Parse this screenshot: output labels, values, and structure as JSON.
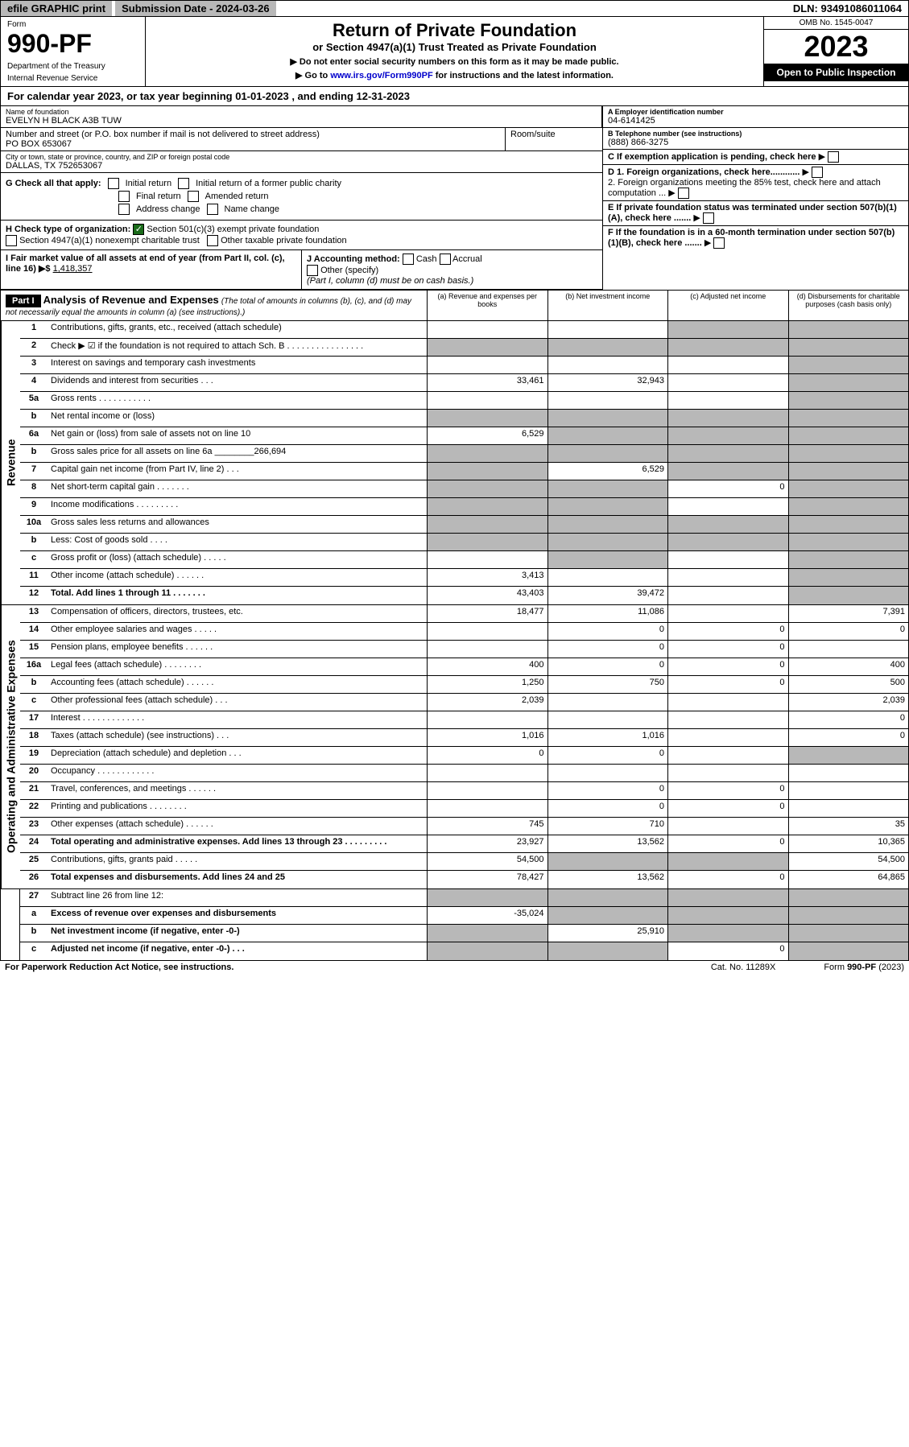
{
  "top": {
    "efile": "efile GRAPHIC print",
    "submission": "Submission Date - 2024-03-26",
    "dln": "DLN: 93491086011064"
  },
  "header": {
    "form_label": "Form",
    "form_num": "990-PF",
    "dept1": "Department of the Treasury",
    "dept2": "Internal Revenue Service",
    "title": "Return of Private Foundation",
    "subtitle": "or Section 4947(a)(1) Trust Treated as Private Foundation",
    "instr1": "▶ Do not enter social security numbers on this form as it may be made public.",
    "instr2_pre": "▶ Go to ",
    "instr2_link": "www.irs.gov/Form990PF",
    "instr2_post": " for instructions and the latest information.",
    "omb": "OMB No. 1545-0047",
    "year": "2023",
    "open": "Open to Public Inspection"
  },
  "cal_year": "For calendar year 2023, or tax year beginning 01-01-2023            , and ending 12-31-2023",
  "info": {
    "name_lbl": "Name of foundation",
    "name": "EVELYN H BLACK A3B TUW",
    "addr_lbl": "Number and street (or P.O. box number if mail is not delivered to street address)",
    "addr": "PO BOX 653067",
    "room_lbl": "Room/suite",
    "city_lbl": "City or town, state or province, country, and ZIP or foreign postal code",
    "city": "DALLAS, TX  752653067",
    "a_lbl": "A Employer identification number",
    "a_val": "04-6141425",
    "b_lbl": "B Telephone number (see instructions)",
    "b_val": "(888) 866-3275",
    "c_lbl": "C If exemption application is pending, check here",
    "d1_lbl": "D 1. Foreign organizations, check here............",
    "d2_lbl": "2. Foreign organizations meeting the 85% test, check here and attach computation ...",
    "e_lbl": "E If private foundation status was terminated under section 507(b)(1)(A), check here .......",
    "f_lbl": "F If the foundation is in a 60-month termination under section 507(b)(1)(B), check here .......",
    "g_lbl": "G Check all that apply:",
    "g_opts": [
      "Initial return",
      "Initial return of a former public charity",
      "Final return",
      "Amended return",
      "Address change",
      "Name change"
    ],
    "h_lbl": "H Check type of organization:",
    "h_opt1": "Section 501(c)(3) exempt private foundation",
    "h_opt2": "Section 4947(a)(1) nonexempt charitable trust",
    "h_opt3": "Other taxable private foundation",
    "i_lbl": "I Fair market value of all assets at end of year (from Part II, col. (c), line 16) ▶$ ",
    "i_val": "1,418,357",
    "j_lbl": "J Accounting method:",
    "j_opts": [
      "Cash",
      "Accrual",
      "Other (specify)"
    ],
    "j_note": "(Part I, column (d) must be on cash basis.)"
  },
  "part1": {
    "label": "Part I",
    "title": "Analysis of Revenue and Expenses",
    "title_note": "(The total of amounts in columns (b), (c), and (d) may not necessarily equal the amounts in column (a) (see instructions).)",
    "col_a": "(a)   Revenue and expenses per books",
    "col_b": "(b)   Net investment income",
    "col_c": "(c)   Adjusted net income",
    "col_d": "(d)   Disbursements for charitable purposes (cash basis only)"
  },
  "sections": {
    "revenue": "Revenue",
    "expenses": "Operating and Administrative Expenses"
  },
  "rows": [
    {
      "n": "1",
      "l": "Contributions, gifts, grants, etc., received (attach schedule)",
      "a": "",
      "b": "",
      "c": "s",
      "d": "s"
    },
    {
      "n": "2",
      "l": "Check ▶ ☑ if the foundation is not required to attach Sch. B   .   .   .   .   .   .   .   .   .   .   .   .   .   .   .   .",
      "a": "s",
      "b": "s",
      "c": "s",
      "d": "s"
    },
    {
      "n": "3",
      "l": "Interest on savings and temporary cash investments",
      "a": "",
      "b": "",
      "c": "",
      "d": "s"
    },
    {
      "n": "4",
      "l": "Dividends and interest from securities   .   .   .",
      "a": "33,461",
      "b": "32,943",
      "c": "",
      "d": "s"
    },
    {
      "n": "5a",
      "l": "Gross rents   .   .   .   .   .   .   .   .   .   .   .",
      "a": "",
      "b": "",
      "c": "",
      "d": "s"
    },
    {
      "n": "b",
      "l": "Net rental income or (loss)  ",
      "a": "s",
      "b": "s",
      "c": "s",
      "d": "s"
    },
    {
      "n": "6a",
      "l": "Net gain or (loss) from sale of assets not on line 10",
      "a": "6,529",
      "b": "s",
      "c": "s",
      "d": "s"
    },
    {
      "n": "b",
      "l": "Gross sales price for all assets on line 6a ________266,694",
      "a": "s",
      "b": "s",
      "c": "s",
      "d": "s"
    },
    {
      "n": "7",
      "l": "Capital gain net income (from Part IV, line 2)   .   .   .",
      "a": "s",
      "b": "6,529",
      "c": "s",
      "d": "s"
    },
    {
      "n": "8",
      "l": "Net short-term capital gain   .   .   .   .   .   .   .",
      "a": "s",
      "b": "s",
      "c": "0",
      "d": "s"
    },
    {
      "n": "9",
      "l": "Income modifications   .   .   .   .   .   .   .   .   .",
      "a": "s",
      "b": "s",
      "c": "",
      "d": "s"
    },
    {
      "n": "10a",
      "l": "Gross sales less returns and allowances  ",
      "a": "s",
      "b": "s",
      "c": "s",
      "d": "s"
    },
    {
      "n": "b",
      "l": "Less: Cost of goods sold   .   .   .   .   ",
      "a": "s",
      "b": "s",
      "c": "s",
      "d": "s"
    },
    {
      "n": "c",
      "l": "Gross profit or (loss) (attach schedule)   .   .   .   .   .",
      "a": "",
      "b": "s",
      "c": "",
      "d": "s"
    },
    {
      "n": "11",
      "l": "Other income (attach schedule)   .   .   .   .   .   .",
      "a": "3,413",
      "b": "",
      "c": "",
      "d": "s"
    },
    {
      "n": "12",
      "l": "Total. Add lines 1 through 11   .   .   .   .   .   .   .",
      "a": "43,403",
      "b": "39,472",
      "c": "",
      "d": "s",
      "bold": true
    }
  ],
  "exp_rows": [
    {
      "n": "13",
      "l": "Compensation of officers, directors, trustees, etc.",
      "a": "18,477",
      "b": "11,086",
      "c": "",
      "d": "7,391"
    },
    {
      "n": "14",
      "l": "Other employee salaries and wages   .   .   .   .   .",
      "a": "",
      "b": "0",
      "c": "0",
      "d": "0"
    },
    {
      "n": "15",
      "l": "Pension plans, employee benefits   .   .   .   .   .   .",
      "a": "",
      "b": "0",
      "c": "0",
      "d": ""
    },
    {
      "n": "16a",
      "l": "Legal fees (attach schedule)   .   .   .   .   .   .   .   .",
      "a": "400",
      "b": "0",
      "c": "0",
      "d": "400"
    },
    {
      "n": "b",
      "l": "Accounting fees (attach schedule)   .   .   .   .   .   .",
      "a": "1,250",
      "b": "750",
      "c": "0",
      "d": "500"
    },
    {
      "n": "c",
      "l": "Other professional fees (attach schedule)   .   .   .",
      "a": "2,039",
      "b": "",
      "c": "",
      "d": "2,039"
    },
    {
      "n": "17",
      "l": "Interest   .   .   .   .   .   .   .   .   .   .   .   .   .",
      "a": "",
      "b": "",
      "c": "",
      "d": "0"
    },
    {
      "n": "18",
      "l": "Taxes (attach schedule) (see instructions)   .   .   .",
      "a": "1,016",
      "b": "1,016",
      "c": "",
      "d": "0"
    },
    {
      "n": "19",
      "l": "Depreciation (attach schedule) and depletion   .   .   .",
      "a": "0",
      "b": "0",
      "c": "",
      "d": "s"
    },
    {
      "n": "20",
      "l": "Occupancy   .   .   .   .   .   .   .   .   .   .   .   .",
      "a": "",
      "b": "",
      "c": "",
      "d": ""
    },
    {
      "n": "21",
      "l": "Travel, conferences, and meetings   .   .   .   .   .   .",
      "a": "",
      "b": "0",
      "c": "0",
      "d": ""
    },
    {
      "n": "22",
      "l": "Printing and publications   .   .   .   .   .   .   .   .",
      "a": "",
      "b": "0",
      "c": "0",
      "d": ""
    },
    {
      "n": "23",
      "l": "Other expenses (attach schedule)   .   .   .   .   .   .",
      "a": "745",
      "b": "710",
      "c": "",
      "d": "35"
    },
    {
      "n": "24",
      "l": "Total operating and administrative expenses. Add lines 13 through 23   .   .   .   .   .   .   .   .   .",
      "a": "23,927",
      "b": "13,562",
      "c": "0",
      "d": "10,365",
      "bold": true
    },
    {
      "n": "25",
      "l": "Contributions, gifts, grants paid   .   .   .   .   .",
      "a": "54,500",
      "b": "s",
      "c": "s",
      "d": "54,500"
    },
    {
      "n": "26",
      "l": "Total expenses and disbursements. Add lines 24 and 25",
      "a": "78,427",
      "b": "13,562",
      "c": "0",
      "d": "64,865",
      "bold": true
    }
  ],
  "bottom_rows": [
    {
      "n": "27",
      "l": "Subtract line 26 from line 12:",
      "a": "s",
      "b": "s",
      "c": "s",
      "d": "s"
    },
    {
      "n": "a",
      "l": "Excess of revenue over expenses and disbursements",
      "a": "-35,024",
      "b": "s",
      "c": "s",
      "d": "s",
      "bold": true
    },
    {
      "n": "b",
      "l": "Net investment income (if negative, enter -0-)",
      "a": "s",
      "b": "25,910",
      "c": "s",
      "d": "s",
      "bold": true
    },
    {
      "n": "c",
      "l": "Adjusted net income (if negative, enter -0-)   .   .   .",
      "a": "s",
      "b": "s",
      "c": "0",
      "d": "s",
      "bold": true
    }
  ],
  "footer": {
    "left": "For Paperwork Reduction Act Notice, see instructions.",
    "mid": "Cat. No. 11289X",
    "right": "Form 990-PF (2023)"
  }
}
